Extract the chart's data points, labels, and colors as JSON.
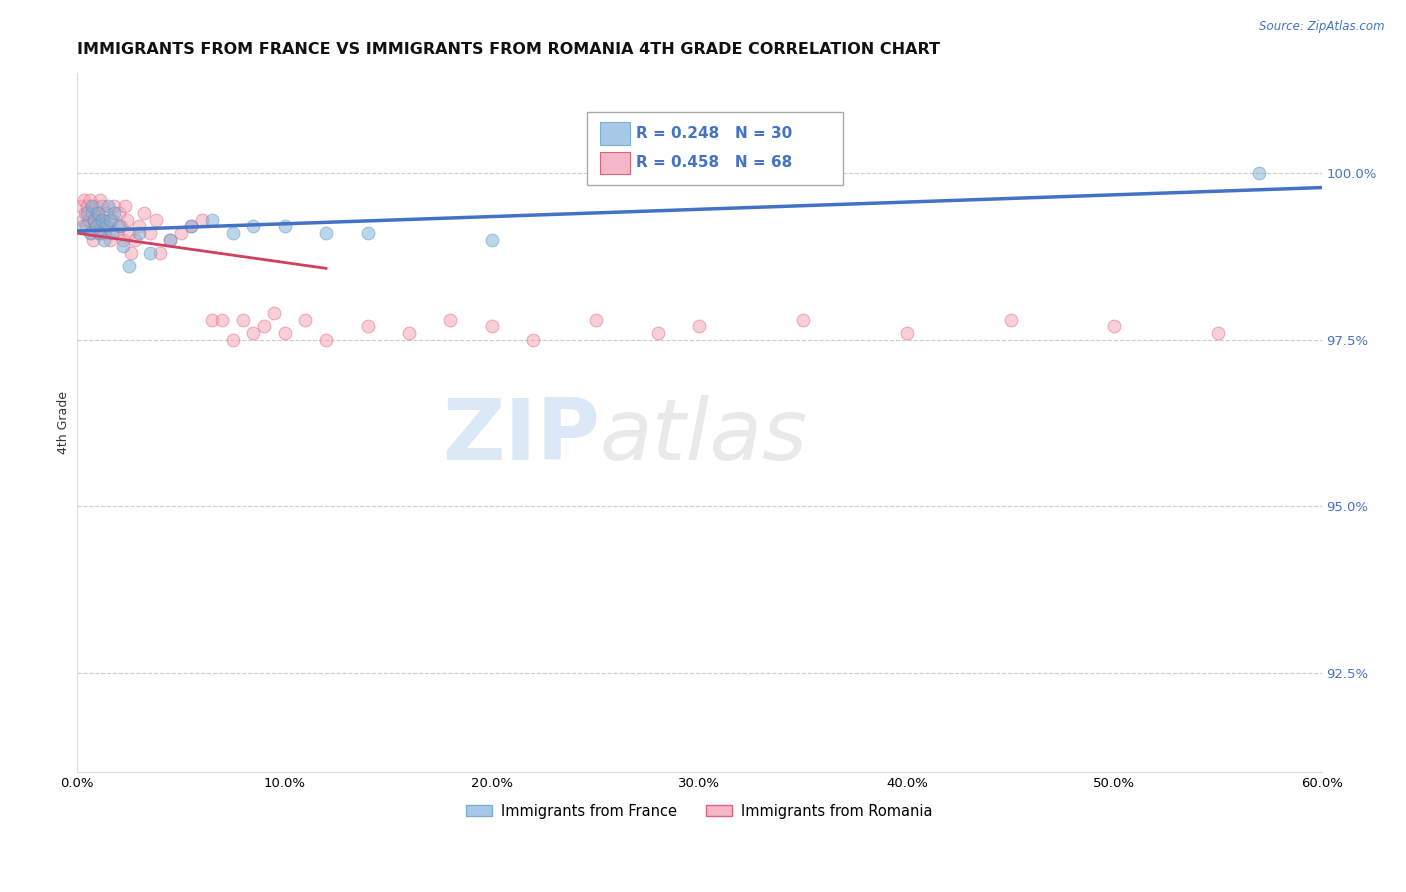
{
  "title": "IMMIGRANTS FROM FRANCE VS IMMIGRANTS FROM ROMANIA 4TH GRADE CORRELATION CHART",
  "source_text": "Source: ZipAtlas.com",
  "ylabel": "4th Grade",
  "xlim": [
    0.0,
    60.0
  ],
  "ylim": [
    91.0,
    101.5
  ],
  "yticks": [
    92.5,
    95.0,
    97.5,
    100.0
  ],
  "ytick_labels": [
    "92.5%",
    "95.0%",
    "97.5%",
    "100.0%"
  ],
  "xticks": [
    0.0,
    10.0,
    20.0,
    30.0,
    40.0,
    50.0,
    60.0
  ],
  "xtick_labels": [
    "0.0%",
    "10.0%",
    "20.0%",
    "30.0%",
    "40.0%",
    "50.0%",
    "60.0%"
  ],
  "france_x": [
    0.3,
    0.5,
    0.6,
    0.7,
    0.8,
    0.9,
    1.0,
    1.1,
    1.2,
    1.3,
    1.4,
    1.5,
    1.6,
    1.7,
    1.8,
    2.0,
    2.2,
    2.5,
    3.0,
    3.5,
    4.5,
    5.5,
    6.5,
    7.5,
    8.5,
    10.0,
    12.0,
    14.0,
    20.0,
    57.0
  ],
  "france_y": [
    99.2,
    99.4,
    99.1,
    99.5,
    99.3,
    99.2,
    99.4,
    99.1,
    99.3,
    99.0,
    99.2,
    99.5,
    99.3,
    99.1,
    99.4,
    99.2,
    98.9,
    98.6,
    99.1,
    98.8,
    99.0,
    99.2,
    99.3,
    99.1,
    99.2,
    99.2,
    99.1,
    99.1,
    99.0,
    100.0
  ],
  "romania_x": [
    0.2,
    0.3,
    0.35,
    0.4,
    0.45,
    0.5,
    0.55,
    0.6,
    0.65,
    0.7,
    0.75,
    0.8,
    0.85,
    0.9,
    0.95,
    1.0,
    1.05,
    1.1,
    1.15,
    1.2,
    1.25,
    1.3,
    1.4,
    1.5,
    1.6,
    1.7,
    1.8,
    1.9,
    2.0,
    2.1,
    2.2,
    2.3,
    2.4,
    2.5,
    2.6,
    2.8,
    3.0,
    3.2,
    3.5,
    3.8,
    4.0,
    4.5,
    5.0,
    5.5,
    6.0,
    6.5,
    7.0,
    7.5,
    8.0,
    8.5,
    9.0,
    9.5,
    10.0,
    11.0,
    12.0,
    14.0,
    16.0,
    18.0,
    20.0,
    22.0,
    25.0,
    28.0,
    30.0,
    35.0,
    40.0,
    45.0,
    50.0,
    55.0
  ],
  "romania_y": [
    99.5,
    99.3,
    99.6,
    99.4,
    99.2,
    99.5,
    99.3,
    99.6,
    99.1,
    99.4,
    99.0,
    99.3,
    99.5,
    99.2,
    99.4,
    99.1,
    99.3,
    99.6,
    99.2,
    99.5,
    99.3,
    99.1,
    99.4,
    99.2,
    99.0,
    99.3,
    99.5,
    99.1,
    99.4,
    99.2,
    99.0,
    99.5,
    99.3,
    99.1,
    98.8,
    99.0,
    99.2,
    99.4,
    99.1,
    99.3,
    98.8,
    99.0,
    99.1,
    99.2,
    99.3,
    97.8,
    97.8,
    97.5,
    97.8,
    97.6,
    97.7,
    97.9,
    97.6,
    97.8,
    97.5,
    97.7,
    97.6,
    97.8,
    97.7,
    97.5,
    97.8,
    97.6,
    97.7,
    97.8,
    97.6,
    97.8,
    97.7,
    97.6
  ],
  "france_color": "#7bafd4",
  "france_edge_color": "#5a8fbf",
  "romania_color": "#f4a0b0",
  "romania_edge_color": "#e06080",
  "france_line_color": "#4472c4",
  "romania_line_color": "#d04060",
  "watermark_zip": "ZIP",
  "watermark_atlas": "atlas",
  "background_color": "#ffffff",
  "grid_color": "#cccccc",
  "marker_size": 85,
  "marker_alpha": 0.5,
  "title_fontsize": 11.5,
  "axis_label_fontsize": 9,
  "tick_fontsize": 9.5,
  "r_blue_text": "R = 0.248   N = 30",
  "r_pink_text": "R = 0.458   N = 68"
}
